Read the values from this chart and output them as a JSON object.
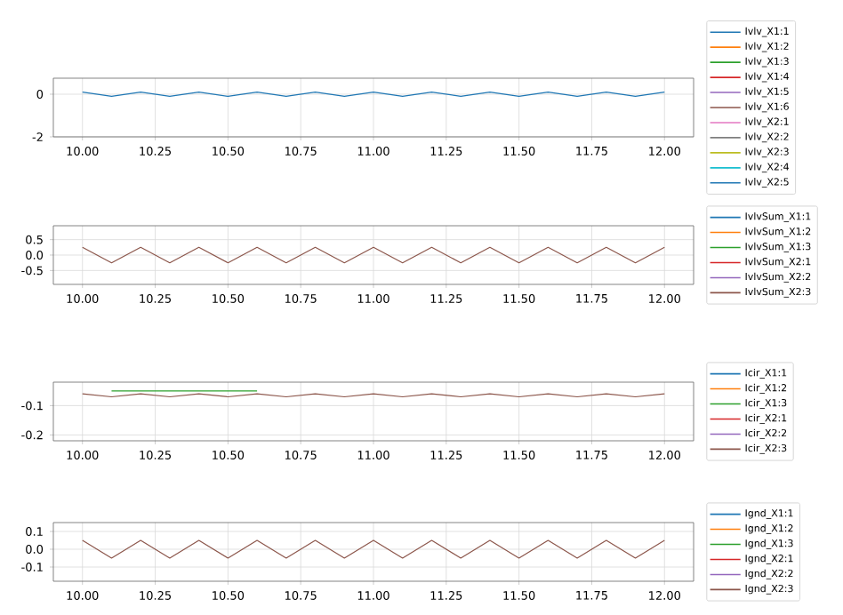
{
  "chart_data": [
    {
      "type": "line",
      "x": [
        10,
        10.1,
        10.2,
        10.3,
        10.4,
        10.5,
        10.6,
        10.7,
        10.8,
        10.9,
        11,
        11.1,
        11.2,
        11.3,
        11.4,
        11.5,
        11.6,
        11.7,
        11.8,
        11.9,
        12
      ],
      "xlim": [
        9.9,
        12.1
      ],
      "xticks": [
        {
          "value": 10,
          "label": "10.00"
        },
        {
          "value": 10.25,
          "label": "10.25"
        },
        {
          "value": 10.5,
          "label": "10.50"
        },
        {
          "value": 10.75,
          "label": "10.75"
        },
        {
          "value": 11,
          "label": "11.00"
        },
        {
          "value": 11.25,
          "label": "11.25"
        },
        {
          "value": 11.5,
          "label": "11.50"
        },
        {
          "value": 11.75,
          "label": "11.75"
        },
        {
          "value": 12,
          "label": "12.00"
        }
      ],
      "ylim": [
        -2,
        0.75
      ],
      "yticks": [
        -2,
        0
      ],
      "grid": true,
      "legend": "right",
      "series": [
        {
          "name": "Ivlv_X1:1",
          "color": "#1f77b4",
          "values": [
            null,
            null,
            null,
            null,
            null,
            null,
            null,
            null,
            null,
            null,
            null,
            null,
            null,
            null,
            null,
            null,
            null,
            null,
            null,
            null,
            null
          ]
        },
        {
          "name": "Ivlv_X1:2",
          "color": "#ff7f0e",
          "values": [
            null,
            null,
            null,
            null,
            null,
            null,
            null,
            null,
            null,
            null,
            null,
            null,
            null,
            null,
            null,
            null,
            null,
            null,
            null,
            null,
            null
          ]
        },
        {
          "name": "Ivlv_X1:3",
          "color": "#2ca02c",
          "values": [
            null,
            null,
            null,
            null,
            null,
            null,
            null,
            null,
            null,
            null,
            null,
            null,
            null,
            null,
            null,
            null,
            null,
            null,
            null,
            null,
            null
          ]
        },
        {
          "name": "Ivlv_X1:4",
          "color": "#d62728",
          "values": [
            null,
            null,
            null,
            null,
            null,
            null,
            null,
            null,
            null,
            null,
            null,
            null,
            null,
            null,
            null,
            null,
            null,
            null,
            null,
            null,
            null
          ]
        },
        {
          "name": "Ivlv_X1:5",
          "color": "#9467bd",
          "values": [
            null,
            null,
            null,
            null,
            null,
            null,
            null,
            null,
            null,
            null,
            null,
            null,
            null,
            null,
            null,
            null,
            null,
            null,
            null,
            null,
            null
          ]
        },
        {
          "name": "Ivlv_X1:6",
          "color": "#8c564b",
          "values": [
            null,
            null,
            null,
            null,
            null,
            null,
            null,
            null,
            null,
            null,
            null,
            null,
            null,
            null,
            null,
            null,
            null,
            null,
            null,
            null,
            null
          ]
        },
        {
          "name": "Ivlv_X2:1",
          "color": "#e377c2",
          "values": [
            null,
            null,
            null,
            null,
            null,
            null,
            null,
            null,
            null,
            null,
            null,
            null,
            null,
            null,
            null,
            null,
            null,
            null,
            null,
            null,
            null
          ]
        },
        {
          "name": "Ivlv_X2:2",
          "color": "#7f7f7f",
          "values": [
            null,
            null,
            null,
            null,
            null,
            null,
            null,
            null,
            null,
            null,
            null,
            null,
            null,
            null,
            null,
            null,
            null,
            null,
            null,
            null,
            null
          ]
        },
        {
          "name": "Ivlv_X2:3",
          "color": "#bcbd22",
          "values": [
            null,
            null,
            null,
            null,
            null,
            null,
            null,
            null,
            null,
            null,
            null,
            null,
            null,
            null,
            null,
            null,
            null,
            null,
            null,
            null,
            null
          ]
        },
        {
          "name": "Ivlv_X2:4",
          "color": "#17becf",
          "values": [
            null,
            null,
            null,
            null,
            null,
            null,
            null,
            null,
            null,
            null,
            null,
            null,
            null,
            null,
            null,
            null,
            null,
            null,
            null,
            null,
            null
          ]
        },
        {
          "name": "Ivlv_X2:5",
          "color": "#1f77b4",
          "values": [
            0.1,
            -0.1,
            0.1,
            -0.1,
            0.1,
            -0.1,
            0.1,
            -0.1,
            0.1,
            -0.1,
            0.1,
            -0.1,
            0.1,
            -0.1,
            0.1,
            -0.1,
            0.1,
            -0.1,
            0.1,
            -0.1,
            0.1
          ]
        }
      ]
    },
    {
      "type": "line",
      "x": [
        10,
        10.1,
        10.2,
        10.3,
        10.4,
        10.5,
        10.6,
        10.7,
        10.8,
        10.9,
        11,
        11.1,
        11.2,
        11.3,
        11.4,
        11.5,
        11.6,
        11.7,
        11.8,
        11.9,
        12
      ],
      "xlim": [
        9.9,
        12.1
      ],
      "xticks": [
        {
          "value": 10,
          "label": "10.00"
        },
        {
          "value": 10.25,
          "label": "10.25"
        },
        {
          "value": 10.5,
          "label": "10.50"
        },
        {
          "value": 10.75,
          "label": "10.75"
        },
        {
          "value": 11,
          "label": "11.00"
        },
        {
          "value": 11.25,
          "label": "11.25"
        },
        {
          "value": 11.5,
          "label": "11.50"
        },
        {
          "value": 11.75,
          "label": "11.75"
        },
        {
          "value": 12,
          "label": "12.00"
        }
      ],
      "ylim": [
        -0.95,
        0.95
      ],
      "yticks": [
        -0.5,
        {
          "value": 0,
          "label": "0.0"
        },
        0.5
      ],
      "grid": true,
      "legend": "right",
      "series": [
        {
          "name": "IvlvSum_X1:1",
          "color": "#1f77b4",
          "values": [
            null,
            null,
            null,
            null,
            null,
            null,
            null,
            null,
            null,
            null,
            null,
            null,
            null,
            null,
            null,
            null,
            null,
            null,
            null,
            null,
            null
          ]
        },
        {
          "name": "IvlvSum_X1:2",
          "color": "#ff7f0e",
          "values": [
            null,
            null,
            null,
            null,
            null,
            null,
            null,
            null,
            null,
            null,
            null,
            null,
            null,
            null,
            null,
            null,
            null,
            null,
            null,
            null,
            null
          ]
        },
        {
          "name": "IvlvSum_X1:3",
          "color": "#2ca02c",
          "values": [
            null,
            null,
            null,
            null,
            null,
            null,
            null,
            null,
            null,
            null,
            null,
            null,
            null,
            null,
            null,
            null,
            null,
            null,
            null,
            null,
            null
          ]
        },
        {
          "name": "IvlvSum_X2:1",
          "color": "#d62728",
          "values": [
            null,
            null,
            null,
            null,
            null,
            null,
            null,
            null,
            null,
            null,
            null,
            null,
            null,
            null,
            null,
            null,
            null,
            null,
            null,
            null,
            null
          ]
        },
        {
          "name": "IvlvSum_X2:2",
          "color": "#9467bd",
          "values": [
            null,
            null,
            null,
            null,
            null,
            null,
            null,
            null,
            null,
            null,
            null,
            null,
            null,
            null,
            null,
            null,
            null,
            null,
            null,
            null,
            null
          ]
        },
        {
          "name": "IvlvSum_X2:3",
          "color": "#8c564b",
          "values": [
            0.25,
            -0.25,
            0.25,
            -0.25,
            0.25,
            -0.25,
            0.25,
            -0.25,
            0.25,
            -0.25,
            0.25,
            -0.25,
            0.25,
            -0.25,
            0.25,
            -0.25,
            0.25,
            -0.25,
            0.25,
            -0.25,
            0.25
          ]
        }
      ]
    },
    {
      "type": "line",
      "x": [
        10,
        10.1,
        10.2,
        10.3,
        10.4,
        10.5,
        10.6,
        10.7,
        10.8,
        10.9,
        11,
        11.1,
        11.2,
        11.3,
        11.4,
        11.5,
        11.6,
        11.7,
        11.8,
        11.9,
        12
      ],
      "xlim": [
        9.9,
        12.1
      ],
      "xticks": [
        {
          "value": 10,
          "label": "10.00"
        },
        {
          "value": 10.25,
          "label": "10.25"
        },
        {
          "value": 10.5,
          "label": "10.50"
        },
        {
          "value": 10.75,
          "label": "10.75"
        },
        {
          "value": 11,
          "label": "11.00"
        },
        {
          "value": 11.25,
          "label": "11.25"
        },
        {
          "value": 11.5,
          "label": "11.50"
        },
        {
          "value": 11.75,
          "label": "11.75"
        },
        {
          "value": 12,
          "label": "12.00"
        }
      ],
      "ylim": [
        -0.22,
        -0.02
      ],
      "yticks": [
        -0.2,
        -0.1
      ],
      "grid": true,
      "legend": "right",
      "series": [
        {
          "name": "Icir_X1:1",
          "color": "#1f77b4",
          "values": [
            null,
            null,
            null,
            null,
            null,
            null,
            null,
            null,
            null,
            null,
            null,
            null,
            null,
            null,
            null,
            null,
            null,
            null,
            null,
            null,
            null
          ]
        },
        {
          "name": "Icir_X1:2",
          "color": "#ff7f0e",
          "values": [
            null,
            null,
            null,
            null,
            null,
            null,
            null,
            null,
            null,
            null,
            null,
            null,
            null,
            null,
            null,
            null,
            null,
            null,
            null,
            null,
            null
          ]
        },
        {
          "name": "Icir_X1:3",
          "color": "#2ca02c",
          "values": [
            null,
            -0.05,
            -0.05,
            -0.05,
            -0.05,
            -0.05,
            -0.05,
            null,
            null,
            null,
            null,
            null,
            null,
            null,
            null,
            null,
            null,
            null,
            null,
            null,
            null
          ]
        },
        {
          "name": "Icir_X2:1",
          "color": "#d62728",
          "values": [
            null,
            null,
            null,
            null,
            null,
            null,
            null,
            null,
            null,
            null,
            null,
            null,
            null,
            null,
            null,
            null,
            null,
            null,
            null,
            null,
            null
          ]
        },
        {
          "name": "Icir_X2:2",
          "color": "#9467bd",
          "values": [
            null,
            null,
            null,
            null,
            null,
            null,
            null,
            null,
            null,
            null,
            null,
            null,
            null,
            null,
            null,
            null,
            null,
            null,
            null,
            null,
            null
          ]
        },
        {
          "name": "Icir_X2:3",
          "color": "#8c564b",
          "values": [
            -0.06,
            -0.07,
            -0.06,
            -0.07,
            -0.06,
            -0.07,
            -0.06,
            -0.07,
            -0.06,
            -0.07,
            -0.06,
            -0.07,
            -0.06,
            -0.07,
            -0.06,
            -0.07,
            -0.06,
            -0.07,
            -0.06,
            -0.07,
            -0.06
          ]
        }
      ]
    },
    {
      "type": "line",
      "x": [
        10,
        10.1,
        10.2,
        10.3,
        10.4,
        10.5,
        10.6,
        10.7,
        10.8,
        10.9,
        11,
        11.1,
        11.2,
        11.3,
        11.4,
        11.5,
        11.6,
        11.7,
        11.8,
        11.9,
        12
      ],
      "xlim": [
        9.9,
        12.1
      ],
      "xticks": [
        {
          "value": 10,
          "label": "10.00"
        },
        {
          "value": 10.25,
          "label": "10.25"
        },
        {
          "value": 10.5,
          "label": "10.50"
        },
        {
          "value": 10.75,
          "label": "10.75"
        },
        {
          "value": 11,
          "label": "11.00"
        },
        {
          "value": 11.25,
          "label": "11.25"
        },
        {
          "value": 11.5,
          "label": "11.50"
        },
        {
          "value": 11.75,
          "label": "11.75"
        },
        {
          "value": 12,
          "label": "12.00"
        }
      ],
      "ylim": [
        -0.18,
        0.15
      ],
      "yticks": [
        -0.1,
        {
          "value": 0,
          "label": "0.0"
        },
        0.1
      ],
      "grid": true,
      "legend": "right",
      "series": [
        {
          "name": "Ignd_X1:1",
          "color": "#1f77b4",
          "values": [
            null,
            null,
            null,
            null,
            null,
            null,
            null,
            null,
            null,
            null,
            null,
            null,
            null,
            null,
            null,
            null,
            null,
            null,
            null,
            null,
            null
          ]
        },
        {
          "name": "Ignd_X1:2",
          "color": "#ff7f0e",
          "values": [
            null,
            null,
            null,
            null,
            null,
            null,
            null,
            null,
            null,
            null,
            null,
            null,
            null,
            null,
            null,
            null,
            null,
            null,
            null,
            null,
            null
          ]
        },
        {
          "name": "Ignd_X1:3",
          "color": "#2ca02c",
          "values": [
            null,
            null,
            null,
            null,
            null,
            null,
            null,
            null,
            null,
            null,
            null,
            null,
            null,
            null,
            null,
            null,
            null,
            null,
            null,
            null,
            null
          ]
        },
        {
          "name": "Ignd_X2:1",
          "color": "#d62728",
          "values": [
            null,
            null,
            null,
            null,
            null,
            null,
            null,
            null,
            null,
            null,
            null,
            null,
            null,
            null,
            null,
            null,
            null,
            null,
            null,
            null,
            null
          ]
        },
        {
          "name": "Ignd_X2:2",
          "color": "#9467bd",
          "values": [
            null,
            null,
            null,
            null,
            null,
            null,
            null,
            null,
            null,
            null,
            null,
            null,
            null,
            null,
            null,
            null,
            null,
            null,
            null,
            null,
            null
          ]
        },
        {
          "name": "Ignd_X2:3",
          "color": "#8c564b",
          "values": [
            0.05,
            -0.05,
            0.05,
            -0.05,
            0.05,
            -0.05,
            0.05,
            -0.05,
            0.05,
            -0.05,
            0.05,
            -0.05,
            0.05,
            -0.05,
            0.05,
            -0.05,
            0.05,
            -0.05,
            0.05,
            -0.05,
            0.05
          ]
        }
      ]
    }
  ]
}
